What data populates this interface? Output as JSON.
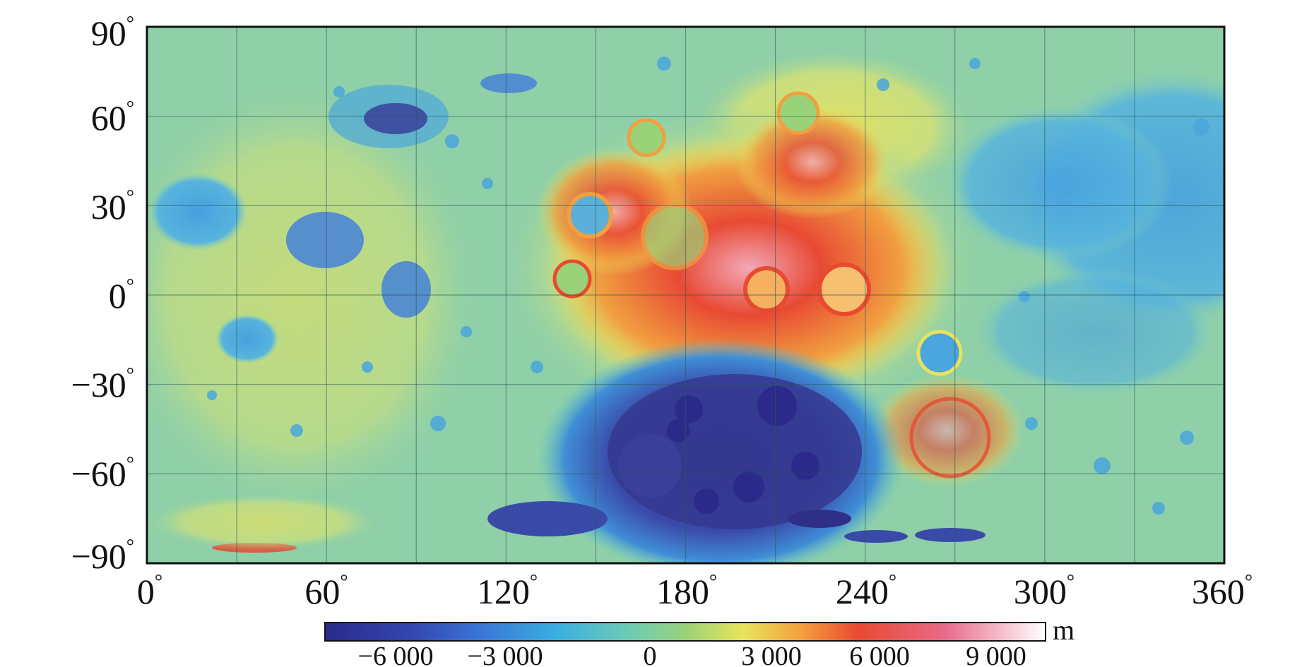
{
  "map": {
    "y_ticks": [
      {
        "deg": "90",
        "sym": "°"
      },
      {
        "deg": "60",
        "sym": "°"
      },
      {
        "deg": "30",
        "sym": "°"
      },
      {
        "deg": "0",
        "sym": "°"
      },
      {
        "deg": "−30",
        "sym": "°"
      },
      {
        "deg": "−60",
        "sym": "°"
      },
      {
        "deg": "−90",
        "sym": "°"
      }
    ],
    "x_ticks": [
      {
        "deg": "0",
        "sym": "°"
      },
      {
        "deg": "60",
        "sym": "°"
      },
      {
        "deg": "120",
        "sym": "°"
      },
      {
        "deg": "180",
        "sym": "°"
      },
      {
        "deg": "240",
        "sym": "°"
      },
      {
        "deg": "300",
        "sym": "°"
      },
      {
        "deg": "360",
        "sym": "°"
      }
    ],
    "lon_range": [
      0,
      360
    ],
    "lat_range": [
      -90,
      90
    ],
    "grid_step_lon": 30,
    "grid_step_lat": 30,
    "grid": true
  },
  "colorbar": {
    "unit": "m",
    "labels": [
      "−6 000",
      "−3 000",
      "0",
      "3 000",
      "6 000",
      "9 000"
    ],
    "colors": [
      "#2b2a8a",
      "#3a56c8",
      "#3aa0e0",
      "#5ec8b8",
      "#9ad27a",
      "#e8e45a",
      "#f5a040",
      "#e84a30",
      "#e85a80",
      "#ffffff"
    ]
  },
  "colors": {
    "highland_red": "#e04a2e",
    "basin_blue": "#3a3f9a",
    "mare_blue": "#4aa6dc",
    "plains_green": "#8ccf9a",
    "rim_yellow": "#e9e25e"
  }
}
